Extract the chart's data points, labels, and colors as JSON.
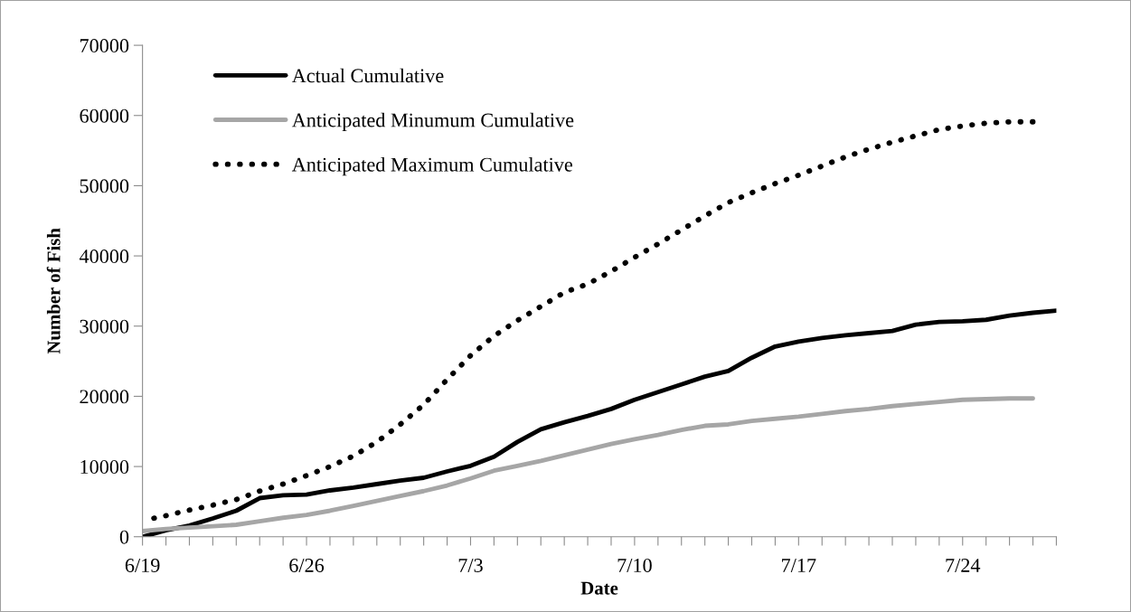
{
  "chart_data": {
    "type": "line",
    "xlabel": "Date",
    "ylabel": "Number of Fish",
    "categories": [
      "6/19",
      null,
      null,
      null,
      null,
      null,
      null,
      "6/26",
      null,
      null,
      null,
      null,
      null,
      null,
      "7/3",
      null,
      null,
      null,
      null,
      null,
      null,
      "7/10",
      null,
      null,
      null,
      null,
      null,
      null,
      "7/17",
      null,
      null,
      null,
      null,
      null,
      null,
      "7/24",
      null,
      null,
      null,
      null
    ],
    "series": [
      {
        "name": "Actual Cumulative",
        "color": "#000000",
        "line_style": "solid",
        "values": [
          0,
          900,
          1600,
          2600,
          3700,
          5500,
          5900,
          6000,
          6600,
          7000,
          7500,
          8000,
          8400,
          9300,
          10100,
          11400,
          13500,
          15300,
          16300,
          17200,
          18200,
          19500,
          20600,
          21700,
          22800,
          23600,
          25500,
          27100,
          27800,
          28300,
          28700,
          29000,
          29300,
          30200,
          30600,
          30700,
          30900,
          31500,
          31900,
          32200
        ]
      },
      {
        "name": "Anticipated Minumum Cumulative",
        "color": "#a6a6a6",
        "line_style": "solid",
        "values": [
          800,
          1100,
          1300,
          1500,
          1700,
          2200,
          2700,
          3100,
          3700,
          4400,
          5100,
          5800,
          6500,
          7300,
          8300,
          9400,
          10100,
          10800,
          11600,
          12400,
          13200,
          13900,
          14500,
          15200,
          15800,
          16000,
          16500,
          16800,
          17100,
          17500,
          17900,
          18200,
          18600,
          18900,
          19200,
          19500,
          19600,
          19700,
          19700,
          null
        ]
      },
      {
        "name": "Anticipated Maximum Cumulative",
        "color": "#000000",
        "line_style": "dotted",
        "values": [
          2300,
          3000,
          3800,
          4500,
          5300,
          6500,
          7500,
          8700,
          10000,
          11500,
          13500,
          16000,
          18800,
          22400,
          25800,
          28600,
          30800,
          32800,
          34800,
          36000,
          37800,
          39800,
          41700,
          43700,
          45700,
          47600,
          49000,
          50300,
          51500,
          52800,
          54100,
          55200,
          56200,
          57100,
          58000,
          58500,
          58900,
          59100,
          59100,
          null
        ]
      }
    ],
    "ylim": [
      0,
      70000
    ],
    "yticks": [
      0,
      10000,
      20000,
      30000,
      40000,
      50000,
      60000,
      70000
    ],
    "grid": false,
    "legend": "top left",
    "marker": "none"
  }
}
